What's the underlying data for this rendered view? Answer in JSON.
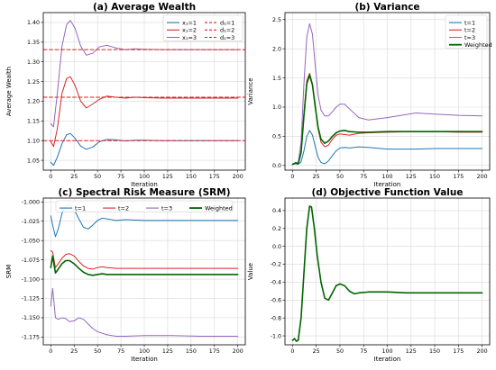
{
  "colors": {
    "blue": "#1f77b4",
    "red": "#d62728",
    "purple": "#9467bd",
    "green": "#006400",
    "dashed_red": "#e41a1c"
  },
  "chart_data": [
    {
      "id": "a",
      "type": "line",
      "title": "(a) Average Wealth",
      "xlabel": "Iteration",
      "ylabel": "Average Wealth",
      "xlim": [
        -8,
        208
      ],
      "ylim": [
        1.025,
        1.425
      ],
      "xticks": [
        0,
        25,
        50,
        75,
        100,
        125,
        150,
        175,
        200
      ],
      "yticks": [
        1.05,
        1.1,
        1.15,
        1.2,
        1.25,
        1.3,
        1.35,
        1.4
      ],
      "ytick_decimals": 2,
      "grid": true,
      "legend": {
        "placement": "top-right",
        "columns": 2
      },
      "series": [
        {
          "name": "x₁=1",
          "color": "#1f77b4",
          "dash": false,
          "x": [
            0,
            3,
            7,
            12,
            17,
            21,
            26,
            32,
            38,
            45,
            52,
            60,
            70,
            80,
            90,
            100,
            120,
            150,
            200
          ],
          "y": [
            1.045,
            1.037,
            1.058,
            1.092,
            1.115,
            1.118,
            1.106,
            1.086,
            1.078,
            1.084,
            1.097,
            1.103,
            1.102,
            1.099,
            1.101,
            1.101,
            1.1,
            1.1,
            1.1
          ]
        },
        {
          "name": "d₁=1",
          "color": "#e41a1c",
          "dash": true,
          "x": [
            -8,
            208
          ],
          "y": [
            1.1,
            1.1
          ]
        },
        {
          "name": "x₁=2",
          "color": "#d62728",
          "dash": false,
          "x": [
            0,
            3,
            7,
            12,
            17,
            21,
            26,
            32,
            38,
            45,
            52,
            60,
            70,
            80,
            90,
            100,
            120,
            150,
            200
          ],
          "y": [
            1.098,
            1.085,
            1.13,
            1.22,
            1.258,
            1.262,
            1.24,
            1.2,
            1.183,
            1.193,
            1.205,
            1.213,
            1.21,
            1.208,
            1.21,
            1.209,
            1.208,
            1.208,
            1.208
          ]
        },
        {
          "name": "d₁=2",
          "color": "#e41a1c",
          "dash": true,
          "x": [
            -8,
            208
          ],
          "y": [
            1.21,
            1.21
          ]
        },
        {
          "name": "x₁=3",
          "color": "#9467bd",
          "dash": false,
          "x": [
            0,
            3,
            7,
            12,
            17,
            21,
            26,
            32,
            38,
            45,
            52,
            60,
            70,
            80,
            90,
            100,
            120,
            150,
            200
          ],
          "y": [
            1.143,
            1.135,
            1.22,
            1.34,
            1.395,
            1.405,
            1.385,
            1.34,
            1.317,
            1.322,
            1.338,
            1.342,
            1.335,
            1.331,
            1.333,
            1.332,
            1.331,
            1.331,
            1.331
          ]
        },
        {
          "name": "d₁=3",
          "color": "#e41a1c",
          "dash": true,
          "x": [
            -8,
            208
          ],
          "y": [
            1.331,
            1.331
          ]
        }
      ]
    },
    {
      "id": "b",
      "type": "line",
      "title": "(b) Variance",
      "xlabel": "Iteration",
      "ylabel": "Variance",
      "xlim": [
        -8,
        208
      ],
      "ylim": [
        -0.08,
        2.62
      ],
      "xticks": [
        0,
        25,
        50,
        75,
        100,
        125,
        150,
        175,
        200
      ],
      "yticks": [
        0.0,
        0.5,
        1.0,
        1.5,
        2.0,
        2.5
      ],
      "ytick_decimals": 1,
      "grid": true,
      "legend": {
        "placement": "top-right",
        "columns": 1
      },
      "series": [
        {
          "name": "t=1",
          "color": "#1f77b4",
          "dash": false,
          "x": [
            0,
            3,
            6,
            9,
            12,
            15,
            18,
            21,
            24,
            27,
            30,
            34,
            38,
            42,
            46,
            50,
            55,
            60,
            70,
            80,
            100,
            130,
            150,
            175,
            200
          ],
          "y": [
            0.02,
            0.03,
            0.02,
            0.06,
            0.25,
            0.5,
            0.6,
            0.52,
            0.32,
            0.14,
            0.05,
            0.03,
            0.08,
            0.17,
            0.25,
            0.3,
            0.31,
            0.3,
            0.32,
            0.31,
            0.28,
            0.28,
            0.29,
            0.29,
            0.29
          ]
        },
        {
          "name": "t=2",
          "color": "#d62728",
          "dash": false,
          "x": [
            0,
            3,
            6,
            9,
            12,
            15,
            18,
            21,
            24,
            27,
            30,
            34,
            38,
            42,
            46,
            50,
            55,
            60,
            70,
            80,
            100,
            130,
            150,
            175,
            200
          ],
          "y": [
            0.02,
            0.05,
            0.03,
            0.25,
            0.9,
            1.45,
            1.58,
            1.4,
            1.0,
            0.62,
            0.4,
            0.32,
            0.35,
            0.45,
            0.52,
            0.54,
            0.53,
            0.52,
            0.55,
            0.56,
            0.57,
            0.58,
            0.58,
            0.57,
            0.57
          ]
        },
        {
          "name": "t=3",
          "color": "#9467bd",
          "dash": false,
          "x": [
            0,
            3,
            6,
            9,
            12,
            15,
            18,
            21,
            24,
            27,
            30,
            34,
            38,
            42,
            46,
            50,
            55,
            60,
            70,
            80,
            100,
            130,
            150,
            175,
            200
          ],
          "y": [
            0.02,
            0.05,
            0.05,
            0.4,
            1.4,
            2.2,
            2.43,
            2.25,
            1.7,
            1.2,
            0.95,
            0.85,
            0.85,
            0.92,
            1.0,
            1.05,
            1.05,
            0.97,
            0.82,
            0.78,
            0.82,
            0.9,
            0.88,
            0.86,
            0.85
          ]
        },
        {
          "name": "Weighted",
          "color": "#006400",
          "dash": false,
          "bold": true,
          "x": [
            0,
            3,
            6,
            9,
            12,
            15,
            18,
            21,
            24,
            27,
            30,
            34,
            38,
            42,
            46,
            50,
            55,
            60,
            70,
            80,
            100,
            130,
            150,
            175,
            200
          ],
          "y": [
            0.02,
            0.04,
            0.03,
            0.22,
            0.85,
            1.4,
            1.55,
            1.38,
            1.0,
            0.65,
            0.45,
            0.38,
            0.42,
            0.5,
            0.56,
            0.59,
            0.6,
            0.58,
            0.57,
            0.57,
            0.58,
            0.58,
            0.58,
            0.58,
            0.58
          ]
        }
      ]
    },
    {
      "id": "c",
      "type": "line",
      "title": "(c) Spectral Risk Measure (SRM)",
      "xlabel": "Iteration",
      "ylabel": "SRM",
      "xlim": [
        -8,
        208
      ],
      "ylim": [
        -1.185,
        -0.995
      ],
      "xticks": [
        0,
        25,
        50,
        75,
        100,
        125,
        150,
        175,
        200
      ],
      "yticks": [
        -1.175,
        -1.15,
        -1.125,
        -1.1,
        -1.075,
        -1.05,
        -1.025,
        -1.0
      ],
      "ytick_decimals": 3,
      "grid": true,
      "legend": {
        "placement": "top",
        "columns": 4
      },
      "series": [
        {
          "name": "t=1",
          "color": "#1f77b4",
          "dash": false,
          "x": [
            0,
            2,
            5,
            8,
            12,
            16,
            20,
            25,
            30,
            35,
            40,
            45,
            50,
            55,
            60,
            70,
            80,
            100,
            130,
            160,
            200
          ],
          "y": [
            -1.018,
            -1.03,
            -1.045,
            -1.035,
            -1.015,
            -1.005,
            -1.003,
            -1.01,
            -1.022,
            -1.033,
            -1.035,
            -1.03,
            -1.024,
            -1.021,
            -1.022,
            -1.024,
            -1.023,
            -1.024,
            -1.024,
            -1.024,
            -1.024
          ]
        },
        {
          "name": "t=2",
          "color": "#d62728",
          "dash": false,
          "x": [
            0,
            2,
            5,
            8,
            12,
            16,
            20,
            25,
            30,
            35,
            40,
            45,
            50,
            55,
            60,
            70,
            80,
            100,
            130,
            160,
            200
          ],
          "y": [
            -1.063,
            -1.065,
            -1.085,
            -1.08,
            -1.073,
            -1.068,
            -1.067,
            -1.07,
            -1.077,
            -1.083,
            -1.086,
            -1.087,
            -1.085,
            -1.084,
            -1.085,
            -1.086,
            -1.086,
            -1.086,
            -1.086,
            -1.086,
            -1.086
          ]
        },
        {
          "name": "t=3",
          "color": "#9467bd",
          "dash": false,
          "x": [
            0,
            2,
            5,
            8,
            12,
            16,
            20,
            25,
            30,
            35,
            40,
            45,
            50,
            60,
            70,
            80,
            100,
            130,
            160,
            200
          ],
          "y": [
            -1.135,
            -1.112,
            -1.15,
            -1.152,
            -1.15,
            -1.151,
            -1.155,
            -1.154,
            -1.15,
            -1.152,
            -1.158,
            -1.164,
            -1.168,
            -1.172,
            -1.174,
            -1.174,
            -1.173,
            -1.173,
            -1.174,
            -1.174
          ]
        },
        {
          "name": "Weighted",
          "color": "#006400",
          "dash": false,
          "bold": true,
          "x": [
            0,
            2,
            5,
            8,
            12,
            16,
            20,
            25,
            30,
            35,
            40,
            45,
            50,
            55,
            60,
            70,
            80,
            100,
            130,
            160,
            200
          ],
          "y": [
            -1.085,
            -1.07,
            -1.092,
            -1.087,
            -1.08,
            -1.076,
            -1.076,
            -1.08,
            -1.086,
            -1.091,
            -1.094,
            -1.095,
            -1.094,
            -1.093,
            -1.094,
            -1.094,
            -1.094,
            -1.094,
            -1.094,
            -1.094,
            -1.094
          ]
        }
      ]
    },
    {
      "id": "d",
      "type": "line",
      "title": "(d) Objective Function Value",
      "xlabel": "Iteration",
      "ylabel": "Value",
      "xlim": [
        -8,
        208
      ],
      "ylim": [
        -1.1,
        0.54
      ],
      "xticks": [
        0,
        25,
        50,
        75,
        100,
        125,
        150,
        175,
        200
      ],
      "yticks": [
        -1.0,
        -0.8,
        -0.6,
        -0.4,
        -0.2,
        0.0,
        0.2,
        0.4
      ],
      "ytick_decimals": 1,
      "grid": true,
      "legend": null,
      "series": [
        {
          "name": "",
          "color": "#006400",
          "dash": false,
          "bold": true,
          "x": [
            0,
            2,
            4,
            6,
            9,
            12,
            15,
            18,
            20,
            23,
            26,
            30,
            34,
            38,
            42,
            46,
            50,
            55,
            60,
            65,
            70,
            80,
            90,
            100,
            120,
            150,
            200
          ],
          "y": [
            -1.05,
            -1.03,
            -1.06,
            -1.05,
            -0.8,
            -0.3,
            0.2,
            0.45,
            0.44,
            0.2,
            -0.1,
            -0.4,
            -0.58,
            -0.6,
            -0.52,
            -0.44,
            -0.42,
            -0.44,
            -0.5,
            -0.53,
            -0.52,
            -0.51,
            -0.51,
            -0.51,
            -0.52,
            -0.52,
            -0.52
          ]
        }
      ]
    }
  ]
}
